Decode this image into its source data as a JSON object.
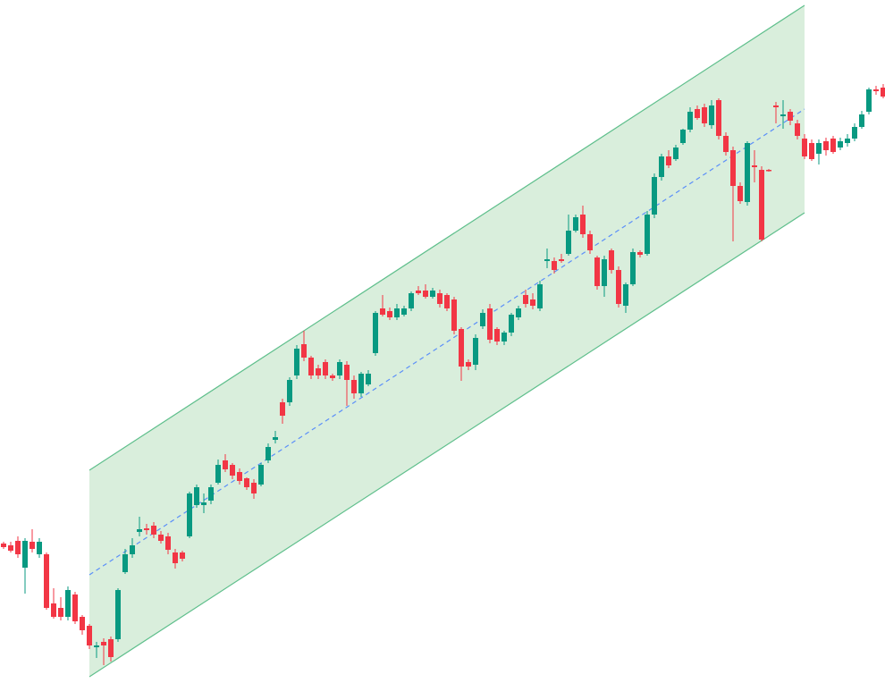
{
  "chart_data": {
    "type": "candlestick",
    "open": [
      156,
      154,
      159,
      129,
      158,
      144,
      144,
      89,
      84,
      74,
      99,
      74,
      64,
      40,
      46,
      49,
      49,
      124,
      144,
      169,
      173,
      176,
      166,
      164,
      146,
      146,
      164,
      199,
      199,
      204,
      224,
      249,
      244,
      236,
      229,
      224,
      222,
      249,
      272,
      314,
      314,
      344,
      379,
      364,
      352,
      359,
      344,
      344,
      356,
      339,
      324,
      334,
      369,
      419,
      416,
      409,
      412,
      419,
      439,
      439,
      432,
      436,
      434,
      429,
      396,
      359,
      356,
      399,
      419,
      396,
      382,
      392,
      409,
      434,
      429,
      419,
      472,
      472,
      474,
      480,
      506,
      524,
      502,
      476,
      444,
      484,
      462,
      422,
      446,
      482,
      480,
      524,
      566,
      589,
      586,
      604,
      619,
      642,
      644,
      624,
      652,
      612,
      596,
      556,
      538,
      579,
      574,
      574,
      646,
      634,
      639,
      626,
      609,
      604,
      592,
      606,
      609,
      599,
      604,
      609,
      622,
      639,
      664,
      666
    ],
    "high": [
      158,
      158,
      164,
      162,
      172,
      162,
      146,
      106,
      96,
      108,
      102,
      76,
      66,
      46,
      50,
      52,
      106,
      150,
      162,
      186,
      178,
      180,
      170,
      168,
      150,
      148,
      214,
      222,
      212,
      222,
      250,
      256,
      246,
      240,
      230,
      228,
      246,
      268,
      282,
      318,
      342,
      378,
      394,
      366,
      356,
      362,
      346,
      362,
      360,
      344,
      348,
      350,
      416,
      434,
      420,
      424,
      422,
      438,
      444,
      446,
      442,
      440,
      436,
      432,
      398,
      362,
      390,
      418,
      424,
      398,
      394,
      414,
      422,
      440,
      436,
      450,
      486,
      476,
      480,
      524,
      524,
      534,
      506,
      478,
      478,
      486,
      466,
      448,
      486,
      484,
      528,
      570,
      592,
      596,
      602,
      620,
      644,
      646,
      648,
      652,
      654,
      616,
      600,
      560,
      606,
      596,
      578,
      575,
      650,
      652,
      642,
      630,
      614,
      608,
      608,
      610,
      612,
      610,
      614,
      626,
      640,
      666,
      668,
      670
    ],
    "low": [
      150,
      146,
      140,
      100,
      146,
      140,
      82,
      72,
      70,
      70,
      66,
      54,
      38,
      28,
      20,
      24,
      46,
      122,
      140,
      164,
      166,
      162,
      156,
      144,
      128,
      136,
      162,
      196,
      190,
      200,
      222,
      236,
      228,
      222,
      216,
      206,
      220,
      246,
      268,
      290,
      310,
      340,
      360,
      340,
      340,
      340,
      338,
      340,
      310,
      318,
      320,
      332,
      366,
      410,
      406,
      406,
      410,
      416,
      434,
      430,
      430,
      420,
      416,
      390,
      338,
      350,
      350,
      396,
      380,
      378,
      378,
      388,
      406,
      420,
      418,
      416,
      464,
      458,
      470,
      478,
      504,
      498,
      480,
      440,
      432,
      458,
      420,
      414,
      444,
      476,
      478,
      520,
      562,
      576,
      584,
      602,
      616,
      630,
      622,
      620,
      608,
      590,
      494,
      536,
      534,
      560,
      494,
      572,
      626,
      620,
      624,
      608,
      586,
      584,
      580,
      590,
      592,
      596,
      600,
      606,
      620,
      636,
      658,
      654
    ],
    "close": [
      152,
      148,
      144,
      159,
      150,
      158,
      84,
      74,
      74,
      104,
      69,
      59,
      42,
      42,
      42,
      29,
      104,
      144,
      154,
      172,
      171,
      166,
      159,
      149,
      134,
      139,
      212,
      219,
      202,
      219,
      244,
      239,
      232,
      226,
      219,
      212,
      244,
      264,
      275,
      299,
      339,
      374,
      364,
      344,
      344,
      344,
      341,
      359,
      339,
      324,
      346,
      346,
      414,
      412,
      409,
      419,
      419,
      436,
      436,
      432,
      439,
      424,
      419,
      394,
      354,
      354,
      386,
      414,
      384,
      382,
      392,
      412,
      419,
      424,
      422,
      446,
      474,
      462,
      472,
      506,
      521,
      502,
      484,
      444,
      474,
      462,
      424,
      446,
      482,
      479,
      524,
      566,
      589,
      579,
      599,
      619,
      639,
      632,
      626,
      646,
      612,
      594,
      556,
      539,
      604,
      577,
      496,
      573,
      644,
      636,
      629,
      612,
      589,
      586,
      604,
      596,
      594,
      606,
      609,
      622,
      636,
      664,
      662,
      656
    ],
    "ylim": [
      0,
      764
    ],
    "up_color": "#089981",
    "down_color": "#f23645",
    "channel": {
      "start_index": 12,
      "end_index": 112,
      "upper": [
        238,
        758
      ],
      "middle": [
        121,
        642
      ],
      "lower": [
        7,
        526
      ],
      "fill": "#d9eedc",
      "line_color": "#5fbf8c",
      "middle_color": "#5b8ff9"
    }
  }
}
